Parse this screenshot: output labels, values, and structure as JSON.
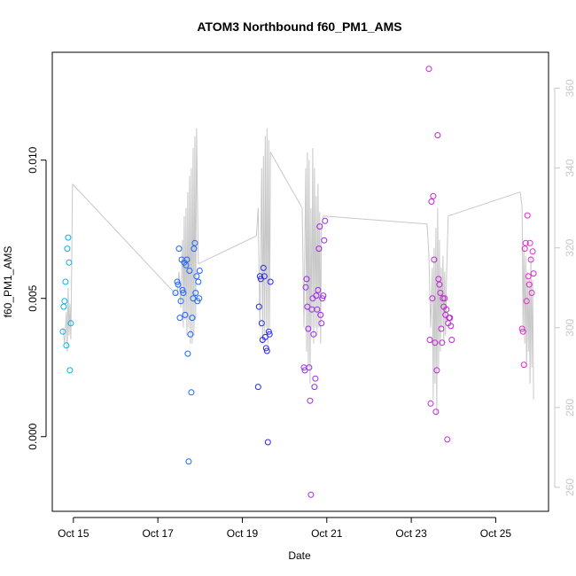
{
  "chart_data": {
    "type": "scatter",
    "title": "ATOM3 Northbound f60_PM1_AMS",
    "xlabel": "Date",
    "ylabel": "f60_PM1_AMS",
    "x_ticks": [
      {
        "date": "Oct 15",
        "label": "Oct 15"
      },
      {
        "date": "Oct 17",
        "label": "Oct 17"
      },
      {
        "date": "Oct 19",
        "label": "Oct 19"
      },
      {
        "date": "Oct 21",
        "label": "Oct 21"
      },
      {
        "date": "Oct 23",
        "label": "Oct 23"
      },
      {
        "date": "Oct 25",
        "label": "Oct 25"
      }
    ],
    "y_ticks": [
      "0.000",
      "0.005",
      "0.010"
    ],
    "y_tick_values": [
      0.0,
      0.005,
      0.01
    ],
    "y2_ticks": [
      "260",
      "280",
      "300",
      "320",
      "340",
      "360"
    ],
    "y2_tick_values": [
      260,
      280,
      300,
      320,
      340,
      360
    ],
    "xlim": [
      "Oct 14 12:00",
      "Oct 26 06:00"
    ],
    "ylim": [
      -0.0027,
      0.0139
    ],
    "y2lim": [
      254,
      369
    ],
    "series": [
      {
        "color": "#00b4e6",
        "points": [
          [
            "Oct 14 18:00",
            0.0038
          ],
          [
            "Oct 14 18:30",
            0.0047
          ],
          [
            "Oct 14 19:00",
            0.0049
          ],
          [
            "Oct 14 19:30",
            0.0056
          ],
          [
            "Oct 14 20:00",
            0.0033
          ],
          [
            "Oct 14 20:30",
            0.0068
          ],
          [
            "Oct 14 21:00",
            0.0072
          ],
          [
            "Oct 14 21:30",
            0.0063
          ],
          [
            "Oct 14 22:00",
            0.0024
          ],
          [
            "Oct 14 22:30",
            0.0041
          ]
        ]
      },
      {
        "color": "#1e64ff",
        "points": [
          [
            "Oct 17 10:00",
            0.0052
          ],
          [
            "Oct 17 11:00",
            0.0056
          ],
          [
            "Oct 17 11:30",
            0.0055
          ],
          [
            "Oct 17 12:00",
            0.0068
          ],
          [
            "Oct 17 12:30",
            0.0043
          ],
          [
            "Oct 17 13:00",
            0.0049
          ],
          [
            "Oct 17 13:30",
            0.0064
          ],
          [
            "Oct 17 14:00",
            0.0053
          ],
          [
            "Oct 17 14:30",
            0.0052
          ],
          [
            "Oct 17 15:00",
            0.0063
          ],
          [
            "Oct 17 15:30",
            0.0044
          ],
          [
            "Oct 17 16:00",
            0.0062
          ],
          [
            "Oct 17 16:30",
            0.0064
          ],
          [
            "Oct 17 17:00",
            0.003
          ],
          [
            "Oct 17 17:30",
            -0.0009
          ],
          [
            "Oct 17 18:00",
            0.006
          ],
          [
            "Oct 17 18:30",
            0.0037
          ],
          [
            "Oct 17 19:00",
            0.0016
          ],
          [
            "Oct 17 19:30",
            0.0043
          ],
          [
            "Oct 17 20:00",
            0.005
          ],
          [
            "Oct 17 20:30",
            0.0068
          ],
          [
            "Oct 17 21:00",
            0.007
          ],
          [
            "Oct 17 21:30",
            0.0052
          ],
          [
            "Oct 17 22:00",
            0.0058
          ],
          [
            "Oct 17 22:30",
            0.0049
          ],
          [
            "Oct 17 23:00",
            0.0056
          ],
          [
            "Oct 17 23:30",
            0.005
          ],
          [
            "Oct 17 23:45",
            0.006
          ]
        ]
      },
      {
        "color": "#2828e6",
        "points": [
          [
            "Oct 19 09:00",
            0.0018
          ],
          [
            "Oct 19 09:30",
            0.0047
          ],
          [
            "Oct 19 10:00",
            0.0058
          ],
          [
            "Oct 19 10:30",
            0.0057
          ],
          [
            "Oct 19 11:00",
            0.0041
          ],
          [
            "Oct 19 11:30",
            0.0035
          ],
          [
            "Oct 19 12:00",
            0.0061
          ],
          [
            "Oct 19 12:30",
            0.0058
          ],
          [
            "Oct 19 13:00",
            0.0036
          ],
          [
            "Oct 19 13:30",
            0.0032
          ],
          [
            "Oct 19 14:00",
            0.0031
          ],
          [
            "Oct 19 14:30",
            -0.0002
          ],
          [
            "Oct 19 15:00",
            0.0038
          ],
          [
            "Oct 19 15:30",
            0.0037
          ],
          [
            "Oct 19 16:00",
            0.0056
          ]
        ]
      },
      {
        "color": "#9b28e6",
        "points": [
          [
            "Oct 20 11:00",
            0.0025
          ],
          [
            "Oct 20 11:30",
            0.0024
          ],
          [
            "Oct 20 12:00",
            0.0054
          ],
          [
            "Oct 20 12:30",
            0.0057
          ],
          [
            "Oct 20 13:00",
            0.0047
          ],
          [
            "Oct 20 13:30",
            0.0039
          ],
          [
            "Oct 20 14:00",
            0.0025
          ],
          [
            "Oct 20 14:30",
            0.0013
          ],
          [
            "Oct 20 15:00",
            -0.0021
          ],
          [
            "Oct 20 15:30",
            0.0046
          ],
          [
            "Oct 20 16:00",
            0.005
          ],
          [
            "Oct 20 16:30",
            0.0037
          ],
          [
            "Oct 20 17:00",
            0.0018
          ],
          [
            "Oct 20 17:30",
            0.0021
          ],
          [
            "Oct 20 18:00",
            0.0051
          ],
          [
            "Oct 20 18:30",
            0.0046
          ],
          [
            "Oct 20 19:00",
            0.0053
          ],
          [
            "Oct 20 19:30",
            0.0068
          ],
          [
            "Oct 20 20:00",
            0.0076
          ],
          [
            "Oct 20 20:30",
            0.0044
          ],
          [
            "Oct 20 21:00",
            0.0041
          ],
          [
            "Oct 20 21:30",
            0.005
          ],
          [
            "Oct 20 22:00",
            0.0051
          ],
          [
            "Oct 20 22:30",
            0.0071
          ],
          [
            "Oct 20 23:00",
            0.0078
          ]
        ]
      },
      {
        "color": "#be28d2",
        "points": [
          [
            "Oct 23 10:00",
            0.0133
          ],
          [
            "Oct 23 10:30",
            0.0035
          ],
          [
            "Oct 23 11:00",
            0.0012
          ],
          [
            "Oct 23 11:30",
            0.0085
          ],
          [
            "Oct 23 12:00",
            0.005
          ],
          [
            "Oct 23 12:30",
            0.0087
          ],
          [
            "Oct 23 13:00",
            0.0064
          ],
          [
            "Oct 23 13:30",
            0.0034
          ],
          [
            "Oct 23 14:00",
            0.0009
          ],
          [
            "Oct 23 14:30",
            0.0024
          ],
          [
            "Oct 23 15:00",
            0.0109
          ],
          [
            "Oct 23 15:30",
            0.0057
          ],
          [
            "Oct 23 16:00",
            0.0055
          ],
          [
            "Oct 23 16:30",
            0.0052
          ],
          [
            "Oct 23 17:00",
            0.0039
          ],
          [
            "Oct 23 17:30",
            0.0034
          ],
          [
            "Oct 23 18:00",
            0.005
          ],
          [
            "Oct 23 18:30",
            0.0047
          ],
          [
            "Oct 23 19:00",
            0.005
          ],
          [
            "Oct 23 19:30",
            0.0044
          ],
          [
            "Oct 23 20:00",
            0.0046
          ],
          [
            "Oct 23 20:30",
            -0.0001
          ],
          [
            "Oct 23 21:00",
            0.0041
          ],
          [
            "Oct 23 21:30",
            0.0043
          ],
          [
            "Oct 23 22:00",
            0.0043
          ],
          [
            "Oct 23 22:30",
            0.004
          ],
          [
            "Oct 23 23:00",
            0.0035
          ]
        ]
      },
      {
        "color": "#e628d2",
        "points": [
          [
            "Oct 25 15:00",
            0.0039
          ],
          [
            "Oct 25 15:30",
            0.0038
          ],
          [
            "Oct 25 16:00",
            0.0026
          ],
          [
            "Oct 25 16:30",
            0.0068
          ],
          [
            "Oct 25 17:00",
            0.007
          ],
          [
            "Oct 25 17:30",
            0.0049
          ],
          [
            "Oct 25 18:00",
            0.008
          ],
          [
            "Oct 25 18:30",
            0.0058
          ],
          [
            "Oct 25 19:00",
            0.0055
          ],
          [
            "Oct 25 19:30",
            0.007
          ],
          [
            "Oct 25 20:00",
            0.0064
          ],
          [
            "Oct 25 20:30",
            0.0052
          ],
          [
            "Oct 25 21:00",
            0.0067
          ],
          [
            "Oct 25 21:30",
            0.0059
          ]
        ]
      }
    ],
    "y2_series": {
      "color": "#c8c8c8",
      "segments": [
        [
          [
            "Oct 14 18:00",
            300
          ],
          [
            "Oct 14 19:00",
            296
          ],
          [
            "Oct 14 20:00",
            304
          ],
          [
            "Oct 14 20:30",
            294
          ],
          [
            "Oct 14 21:00",
            310
          ],
          [
            "Oct 14 21:30",
            298
          ],
          [
            "Oct 14 22:00",
            306
          ],
          [
            "Oct 14 22:30",
            297
          ],
          [
            "Oct 14 23:00",
            313
          ],
          [
            "Oct 14 23:30",
            336
          ]
        ],
        [
          [
            "Oct 14 23:30",
            336
          ],
          [
            "Oct 17 11:00",
            308
          ]
        ],
        [
          [
            "Oct 17 11:00",
            308
          ],
          [
            "Oct 17 12:00",
            314
          ],
          [
            "Oct 17 13:00",
            305
          ],
          [
            "Oct 17 14:00",
            322
          ],
          [
            "Oct 17 14:30",
            300
          ],
          [
            "Oct 17 15:00",
            328
          ],
          [
            "Oct 17 15:30",
            302
          ],
          [
            "Oct 17 16:00",
            330
          ],
          [
            "Oct 17 16:30",
            298
          ],
          [
            "Oct 17 17:00",
            334
          ],
          [
            "Oct 17 17:30",
            300
          ],
          [
            "Oct 17 18:00",
            338
          ],
          [
            "Oct 17 18:30",
            296
          ],
          [
            "Oct 17 19:00",
            340
          ],
          [
            "Oct 17 19:30",
            296
          ],
          [
            "Oct 17 20:00",
            345
          ],
          [
            "Oct 17 20:30",
            298
          ],
          [
            "Oct 17 21:00",
            348
          ],
          [
            "Oct 17 21:30",
            302
          ],
          [
            "Oct 17 22:00",
            350
          ],
          [
            "Oct 17 23:00",
            316
          ]
        ],
        [
          [
            "Oct 17 23:00",
            316
          ],
          [
            "Oct 19 08:00",
            323
          ]
        ],
        [
          [
            "Oct 19 08:00",
            323
          ],
          [
            "Oct 19 09:00",
            330
          ],
          [
            "Oct 19 10:00",
            300
          ],
          [
            "Oct 19 11:00",
            340
          ],
          [
            "Oct 19 11:30",
            296
          ],
          [
            "Oct 19 12:00",
            343
          ],
          [
            "Oct 19 12:30",
            298
          ],
          [
            "Oct 19 13:00",
            348
          ],
          [
            "Oct 19 13:30",
            300
          ],
          [
            "Oct 19 14:00",
            350
          ],
          [
            "Oct 19 14:30",
            296
          ],
          [
            "Oct 19 15:00",
            347
          ],
          [
            "Oct 19 15:30",
            300
          ],
          [
            "Oct 19 16:00",
            344
          ]
        ],
        [
          [
            "Oct 19 16:00",
            344
          ],
          [
            "Oct 20 10:00",
            330
          ]
        ],
        [
          [
            "Oct 20 10:00",
            330
          ],
          [
            "Oct 20 11:00",
            300
          ],
          [
            "Oct 20 12:00",
            340
          ],
          [
            "Oct 20 12:30",
            294
          ],
          [
            "Oct 20 13:00",
            344
          ],
          [
            "Oct 20 13:30",
            290
          ],
          [
            "Oct 20 14:00",
            342
          ],
          [
            "Oct 20 14:30",
            286
          ],
          [
            "Oct 20 15:00",
            330
          ],
          [
            "Oct 20 15:30",
            300
          ],
          [
            "Oct 20 16:00",
            345
          ],
          [
            "Oct 20 16:30",
            296
          ],
          [
            "Oct 20 17:00",
            340
          ],
          [
            "Oct 20 17:30",
            300
          ],
          [
            "Oct 20 18:00",
            333
          ],
          [
            "Oct 20 18:30",
            298
          ],
          [
            "Oct 20 19:00",
            336
          ],
          [
            "Oct 20 19:30",
            300
          ],
          [
            "Oct 20 20:00",
            329
          ],
          [
            "Oct 20 20:30",
            296
          ],
          [
            "Oct 20 21:00",
            325
          ],
          [
            "Oct 20 22:00",
            328
          ]
        ],
        [
          [
            "Oct 20 22:00",
            328
          ],
          [
            "Oct 23 09:00",
            326
          ]
        ],
        [
          [
            "Oct 23 09:00",
            326
          ],
          [
            "Oct 23 10:00",
            318
          ],
          [
            "Oct 23 11:00",
            300
          ],
          [
            "Oct 23 12:00",
            315
          ],
          [
            "Oct 23 12:30",
            282
          ],
          [
            "Oct 23 13:00",
            320
          ],
          [
            "Oct 23 13:30",
            286
          ],
          [
            "Oct 23 14:00",
            325
          ],
          [
            "Oct 23 14:30",
            278
          ],
          [
            "Oct 23 15:00",
            330
          ],
          [
            "Oct 23 15:30",
            290
          ],
          [
            "Oct 23 16:00",
            322
          ],
          [
            "Oct 23 16:30",
            294
          ],
          [
            "Oct 23 17:00",
            315
          ],
          [
            "Oct 23 17:30",
            300
          ],
          [
            "Oct 23 18:00",
            318
          ],
          [
            "Oct 23 18:30",
            296
          ],
          [
            "Oct 23 19:00",
            314
          ],
          [
            "Oct 23 19:30",
            298
          ],
          [
            "Oct 23 20:00",
            312
          ],
          [
            "Oct 23 21:00",
            328
          ]
        ],
        [
          [
            "Oct 23 21:00",
            328
          ],
          [
            "Oct 25 14:00",
            334
          ]
        ],
        [
          [
            "Oct 25 14:00",
            334
          ],
          [
            "Oct 25 15:00",
            330
          ],
          [
            "Oct 25 15:30",
            300
          ],
          [
            "Oct 25 16:00",
            320
          ],
          [
            "Oct 25 16:30",
            296
          ],
          [
            "Oct 25 17:00",
            318
          ],
          [
            "Oct 25 17:30",
            290
          ],
          [
            "Oct 25 18:00",
            314
          ],
          [
            "Oct 25 18:30",
            294
          ],
          [
            "Oct 25 19:00",
            312
          ],
          [
            "Oct 25 19:30",
            286
          ],
          [
            "Oct 25 20:00",
            318
          ],
          [
            "Oct 25 20:30",
            290
          ],
          [
            "Oct 25 21:00",
            312
          ],
          [
            "Oct 25 21:30",
            282
          ]
        ]
      ]
    },
    "grid": false,
    "marker": "open-circle"
  }
}
